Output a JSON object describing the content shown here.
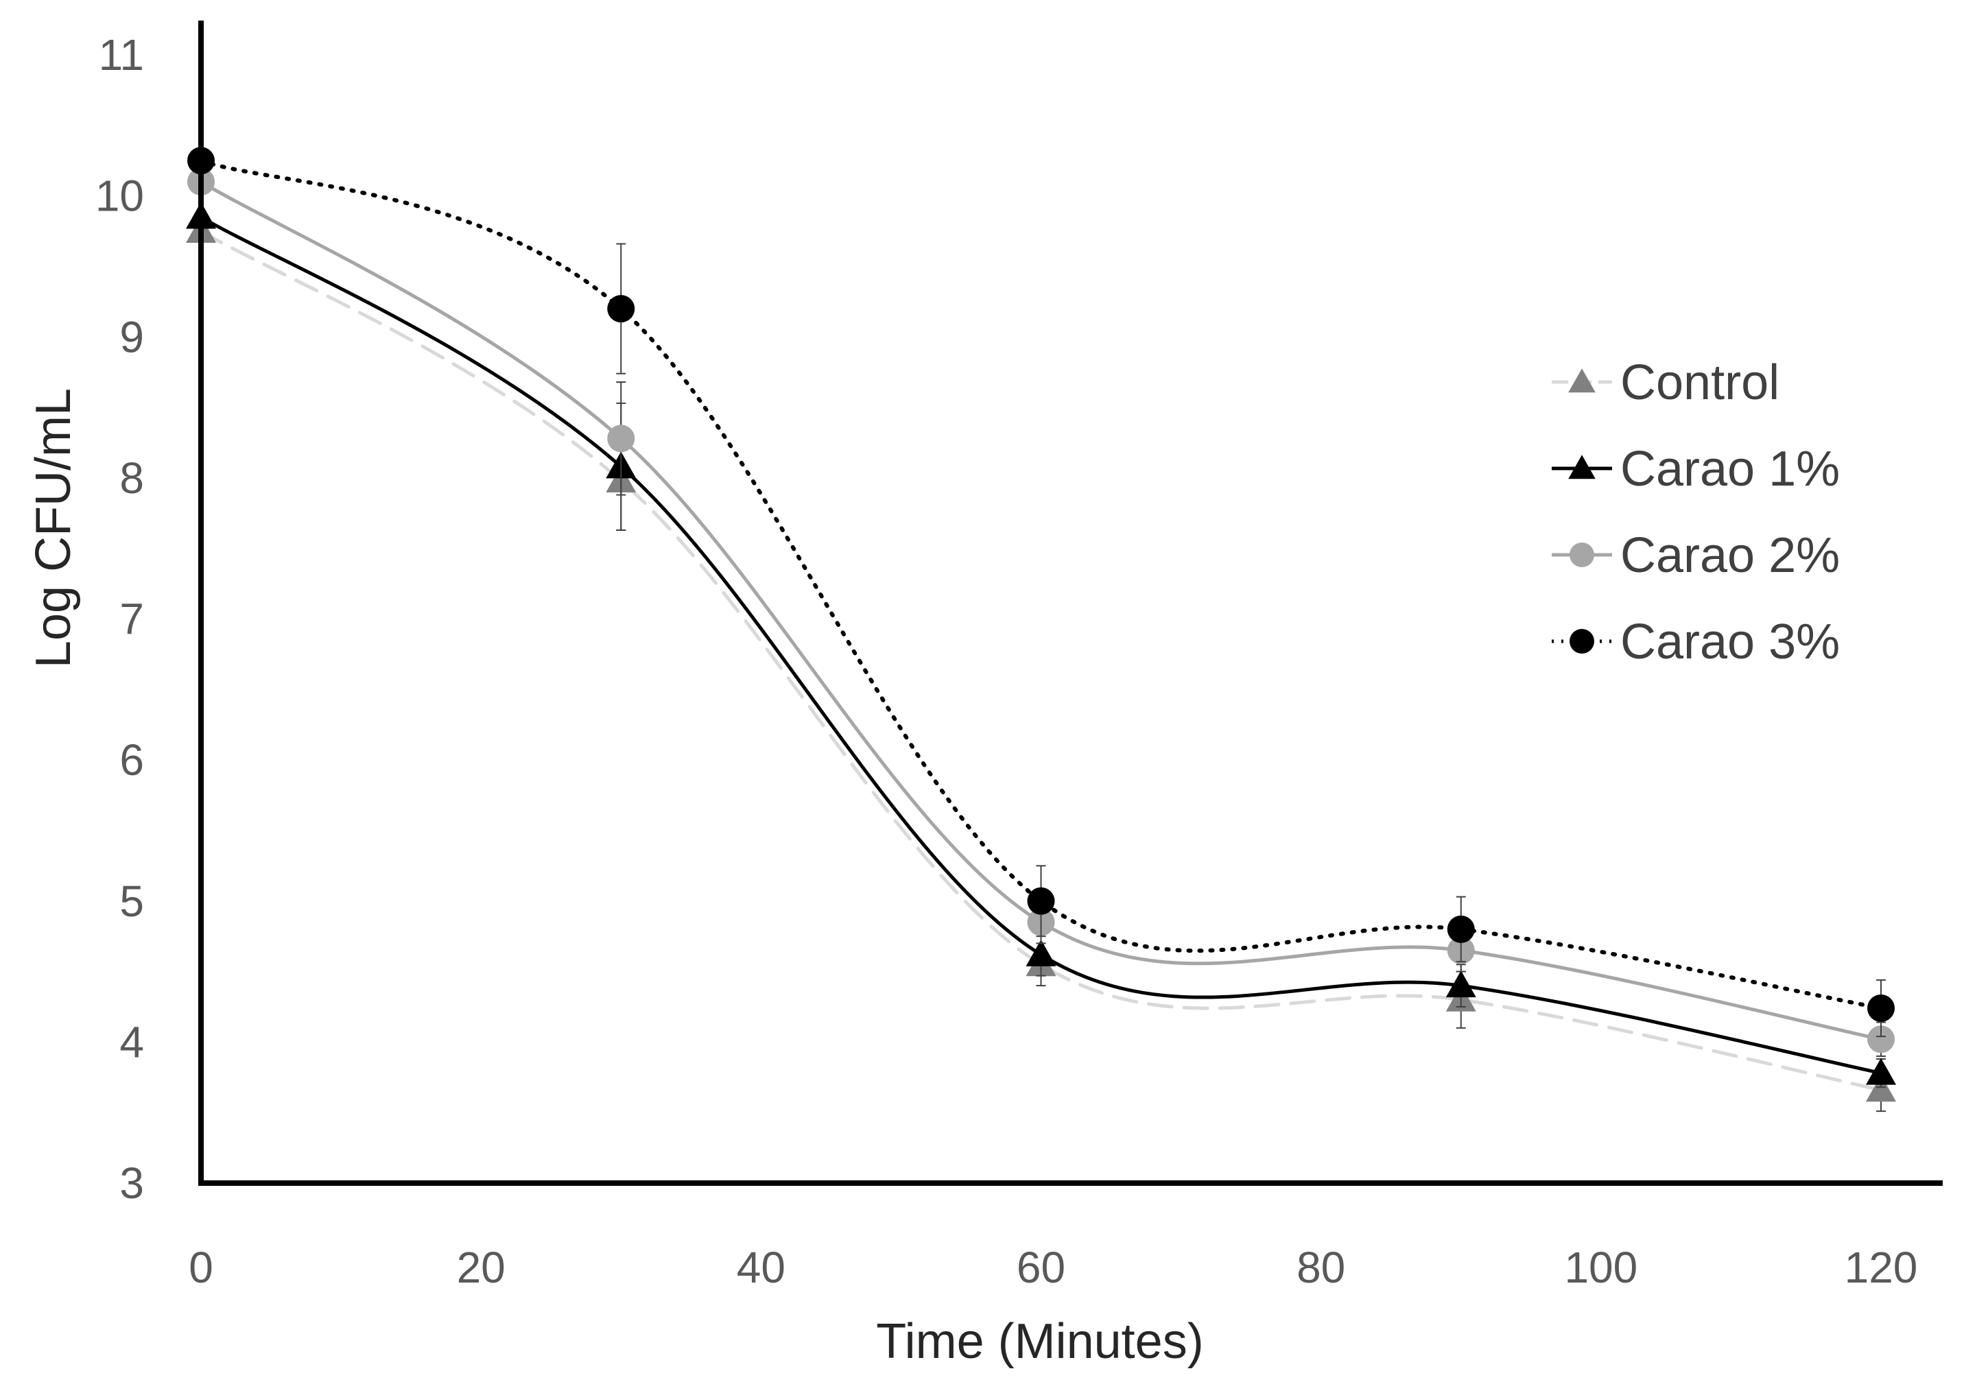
{
  "chart_data": {
    "type": "line",
    "title": "",
    "xlabel": "Time (Minutes)",
    "ylabel": "Log CFU/mL",
    "xlim": [
      0,
      125
    ],
    "ylim": [
      3,
      11
    ],
    "xticks": [
      0,
      20,
      40,
      60,
      80,
      100,
      120
    ],
    "yticks": [
      3,
      4,
      5,
      6,
      7,
      8,
      9,
      10,
      11
    ],
    "x": [
      0,
      30,
      60,
      90,
      120
    ],
    "grid": false,
    "legend_position": "right",
    "series": [
      {
        "name": "Control",
        "values": [
          9.75,
          7.98,
          4.55,
          4.3,
          3.66
        ],
        "errors": [
          0.0,
          0.35,
          0.15,
          0.2,
          0.15
        ],
        "color": "#808080",
        "line_color": "#d9d9d9",
        "marker": "triangle",
        "line_style": "dashed"
      },
      {
        "name": "Carao 1%",
        "values": [
          9.85,
          8.08,
          4.62,
          4.4,
          3.78
        ],
        "errors": [
          0.0,
          0.45,
          0.15,
          0.15,
          0.1
        ],
        "color": "#000000",
        "line_color": "#000000",
        "marker": "triangle",
        "line_style": "solid"
      },
      {
        "name": "Carao 2%",
        "values": [
          10.1,
          8.28,
          4.85,
          4.65,
          4.02
        ],
        "errors": [
          0.0,
          0.4,
          0.15,
          0.15,
          0.12
        ],
        "color": "#a6a6a6",
        "line_color": "#a6a6a6",
        "marker": "circle",
        "line_style": "solid"
      },
      {
        "name": "Carao 3%",
        "values": [
          10.25,
          9.2,
          5.0,
          4.8,
          4.24
        ],
        "errors": [
          0.0,
          0.46,
          0.25,
          0.23,
          0.2
        ],
        "color": "#000000",
        "line_color": "#000000",
        "marker": "circle",
        "line_style": "dotted"
      }
    ]
  }
}
